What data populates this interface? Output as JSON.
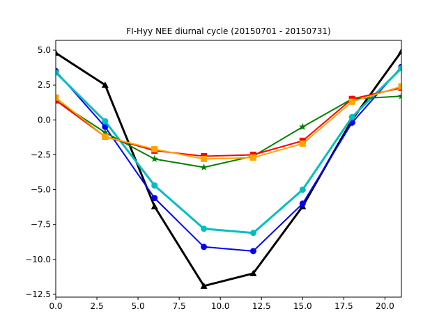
{
  "chart_data": {
    "type": "line",
    "title": "FI-Hyy NEE diurnal cycle (20150701 - 20150731)",
    "xlabel": "",
    "ylabel": "",
    "xlim": [
      0,
      21
    ],
    "ylim": [
      -12.7,
      5.7
    ],
    "grid": false,
    "x": [
      0,
      3,
      6,
      9,
      12,
      15,
      18,
      21
    ],
    "xticks": [
      "0.0",
      "2.5",
      "5.0",
      "7.5",
      "10.0",
      "12.5",
      "15.0",
      "17.5",
      "20.0"
    ],
    "xtick_values": [
      0,
      2.5,
      5,
      7.5,
      10,
      12.5,
      15,
      17.5,
      20
    ],
    "yticks": [
      "5.0",
      "2.5",
      "0.0",
      "−2.5",
      "−5.0",
      "−7.5",
      "−10.0",
      "−12.5"
    ],
    "ytick_values": [
      5,
      2.5,
      0,
      -2.5,
      -5,
      -7.5,
      -10,
      -12.5
    ],
    "series": [
      {
        "values": [
          4.8,
          2.5,
          -6.2,
          -11.9,
          -11.0,
          -6.2,
          0.0,
          4.9
        ],
        "color": "#000000",
        "marker": "triangle",
        "width": 3
      },
      {
        "values": [
          3.5,
          -0.5,
          -5.6,
          -9.1,
          -9.4,
          -6.0,
          -0.2,
          3.8
        ],
        "color": "#0000ff",
        "marker": "circle",
        "width": 2
      },
      {
        "values": [
          3.4,
          -0.1,
          -4.7,
          -7.8,
          -8.1,
          -5.0,
          0.2,
          3.7
        ],
        "color": "#00bfbf",
        "marker": "circle",
        "width": 3
      },
      {
        "values": [
          1.4,
          -0.9,
          -2.8,
          -3.4,
          -2.6,
          -0.5,
          1.5,
          1.7
        ],
        "color": "#008000",
        "marker": "star",
        "width": 2
      },
      {
        "values": [
          1.4,
          -1.2,
          -2.2,
          -2.6,
          -2.5,
          -1.5,
          1.5,
          2.3
        ],
        "color": "#ff0000",
        "marker": "square",
        "width": 2
      },
      {
        "values": [
          1.6,
          -1.2,
          -2.1,
          -2.8,
          -2.7,
          -1.7,
          1.3,
          2.4
        ],
        "color": "#ffa500",
        "marker": "square",
        "width": 2
      }
    ]
  }
}
